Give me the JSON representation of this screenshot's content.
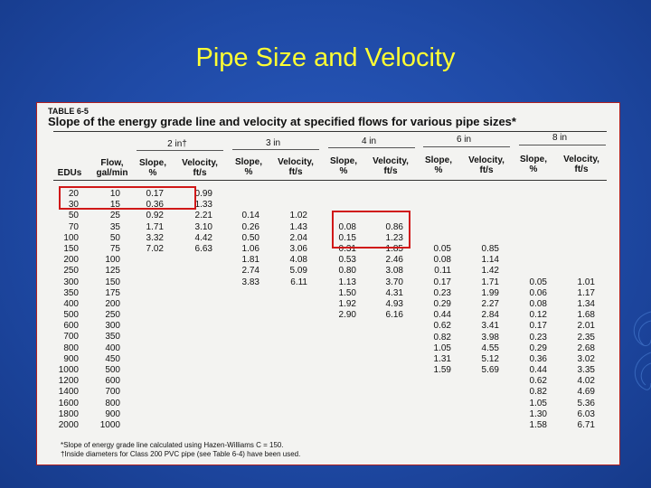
{
  "slide": {
    "title": "Pipe Size and Velocity"
  },
  "table": {
    "label": "TABLE 6-5",
    "title": "Slope of the energy grade line and velocity at specified flows for various pipe sizes*",
    "sizes": [
      "2 in†",
      "3 in",
      "4 in",
      "6 in",
      "8 in"
    ],
    "headers": {
      "edus": "EDUs",
      "flow": [
        "Flow,",
        "gal/min"
      ],
      "slope": [
        "Slope,",
        "%"
      ],
      "velocity": [
        "Velocity,",
        "ft/s"
      ]
    },
    "columns": {
      "edus": [
        "20",
        "30",
        "50",
        "70",
        "100",
        "150",
        "200",
        "250",
        "300",
        "350",
        "400",
        "500",
        "600",
        "700",
        "800",
        "900",
        "1000",
        "1200",
        "1400",
        "1600",
        "1800",
        "2000"
      ],
      "flow": [
        "10",
        "15",
        "25",
        "35",
        "50",
        "75",
        "100",
        "125",
        "150",
        "175",
        "200",
        "250",
        "300",
        "350",
        "400",
        "450",
        "500",
        "600",
        "700",
        "800",
        "900",
        "1000"
      ],
      "s2": [
        "0.17",
        "0.36",
        "0.92",
        "1.71",
        "3.32",
        "7.02"
      ],
      "v2": [
        "0.99",
        "1.33",
        "2.21",
        "3.10",
        "4.42",
        "6.63"
      ],
      "s3": [
        "0.14",
        "0.26",
        "0.50",
        "1.06",
        "1.81",
        "2.74",
        "3.83"
      ],
      "v3": [
        "1.02",
        "1.43",
        "2.04",
        "3.06",
        "4.08",
        "5.09",
        "6.11"
      ],
      "s4": [
        "0.08",
        "0.15",
        "0.31",
        "0.53",
        "0.80",
        "1.13",
        "1.50",
        "1.92",
        "2.90"
      ],
      "v4": [
        "0.86",
        "1.23",
        "1.85",
        "2.46",
        "3.08",
        "3.70",
        "4.31",
        "4.93",
        "6.16"
      ],
      "s6": [
        "0.05",
        "0.08",
        "0.11",
        "0.17",
        "0.23",
        "0.29",
        "0.44",
        "0.62",
        "0.82",
        "1.05",
        "1.31",
        "1.59"
      ],
      "v6": [
        "0.85",
        "1.14",
        "1.42",
        "1.71",
        "1.99",
        "2.27",
        "2.84",
        "3.41",
        "3.98",
        "4.55",
        "5.12",
        "5.69"
      ],
      "s8": [
        "0.05",
        "0.06",
        "0.08",
        "0.12",
        "0.17",
        "0.23",
        "0.29",
        "0.36",
        "0.44",
        "0.62",
        "0.82",
        "1.05",
        "1.30",
        "1.58"
      ],
      "v8": [
        "1.01",
        "1.17",
        "1.34",
        "1.68",
        "2.01",
        "2.35",
        "2.68",
        "3.02",
        "3.35",
        "4.02",
        "4.69",
        "5.36",
        "6.03",
        "6.71"
      ]
    },
    "footnotes": [
      "*Slope of energy grade line calculated using Hazen-Williams C = 150.",
      "†Inside diameters for Class 200 PVC pipe (see Table 6-4) have been used."
    ]
  },
  "colors": {
    "background": "#1f4aa6",
    "title": "#ffff33",
    "highlight": "#d01818"
  }
}
